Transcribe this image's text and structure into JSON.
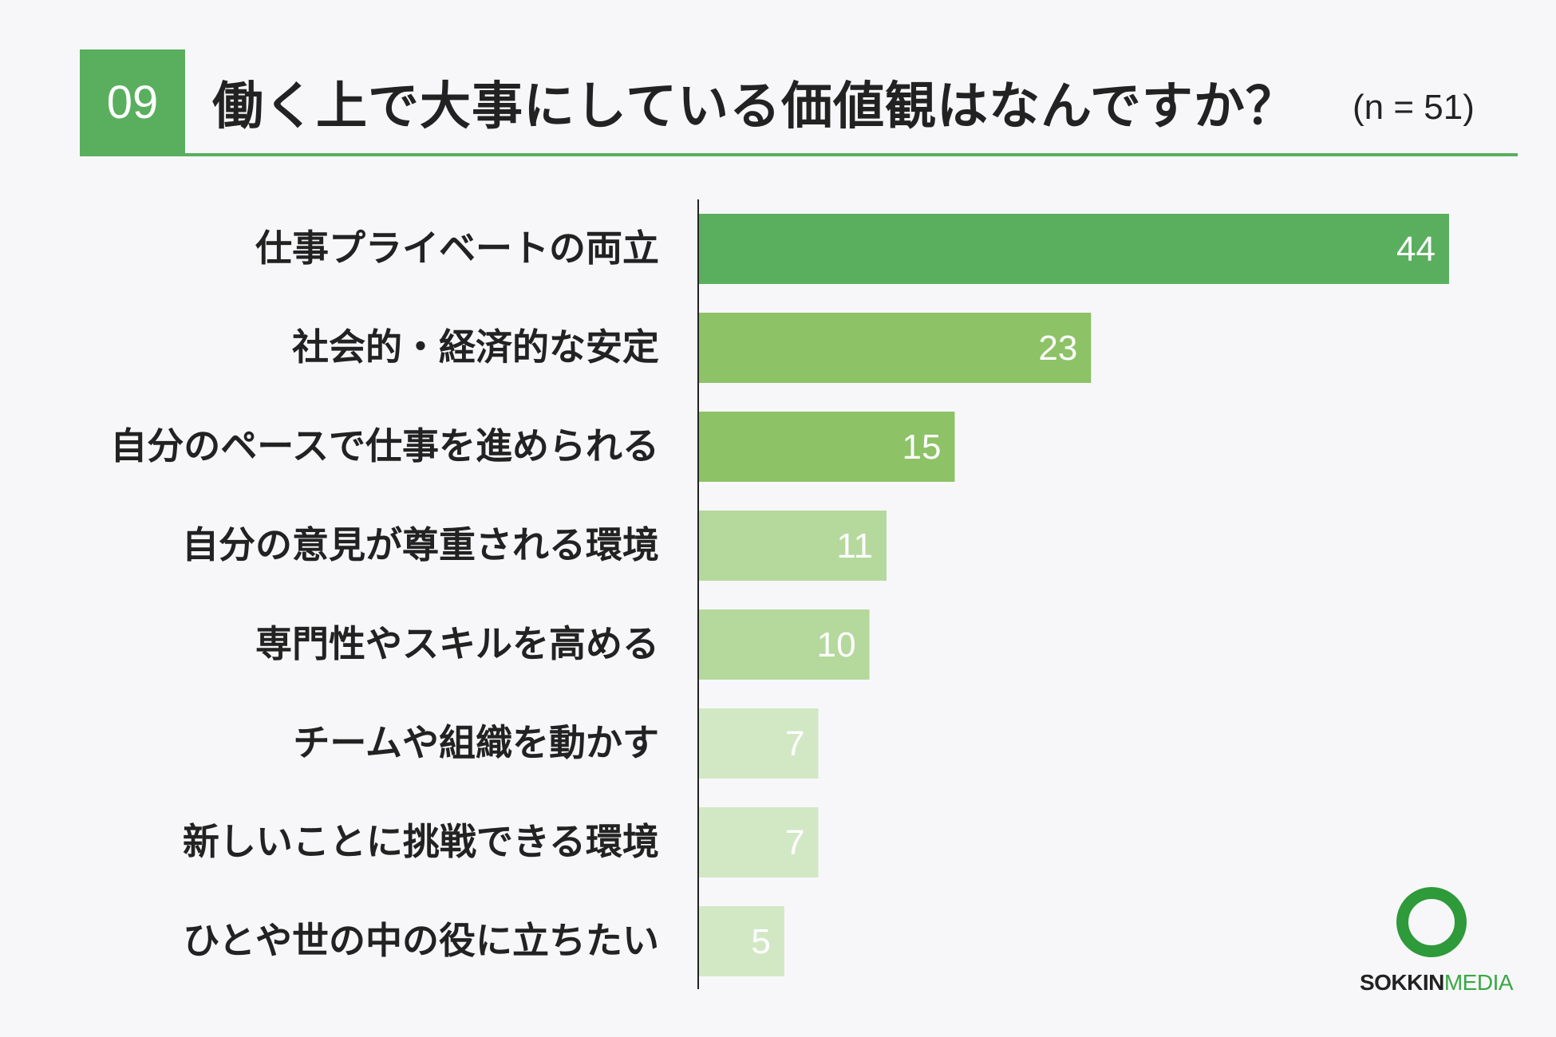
{
  "header": {
    "number": "09",
    "title": "働く上で大事にしている価値観はなんですか？",
    "sample_size": "(n = 51)"
  },
  "chart_data": {
    "type": "bar",
    "orientation": "horizontal",
    "categories": [
      "仕事プライベートの両立",
      "社会的・経済的な安定",
      "自分のペースで仕事を進められる",
      "自分の意見が尊重される環境",
      "専門性やスキルを高める",
      "チームや組織を動かす",
      "新しいことに挑戦できる環境",
      "ひとや世の中の役に立ちたい"
    ],
    "values": [
      44,
      23,
      15,
      11,
      10,
      7,
      7,
      5
    ],
    "bar_colors": [
      "#5aaf5f",
      "#8dc267",
      "#8dc267",
      "#b5d99d",
      "#b5d99d",
      "#d2e8c5",
      "#d2e8c5",
      "#d2e8c5"
    ],
    "value_label_color": "#ffffff",
    "xlim": [
      0,
      44
    ],
    "grid": false,
    "legend": "none"
  },
  "logo": {
    "icon": "ring-logo-icon",
    "word1": "SOKKIN",
    "word2": "MEDIA",
    "colors": {
      "ring": "#2e9a3a",
      "word1": "#222222",
      "word2": "#3aa845"
    }
  }
}
